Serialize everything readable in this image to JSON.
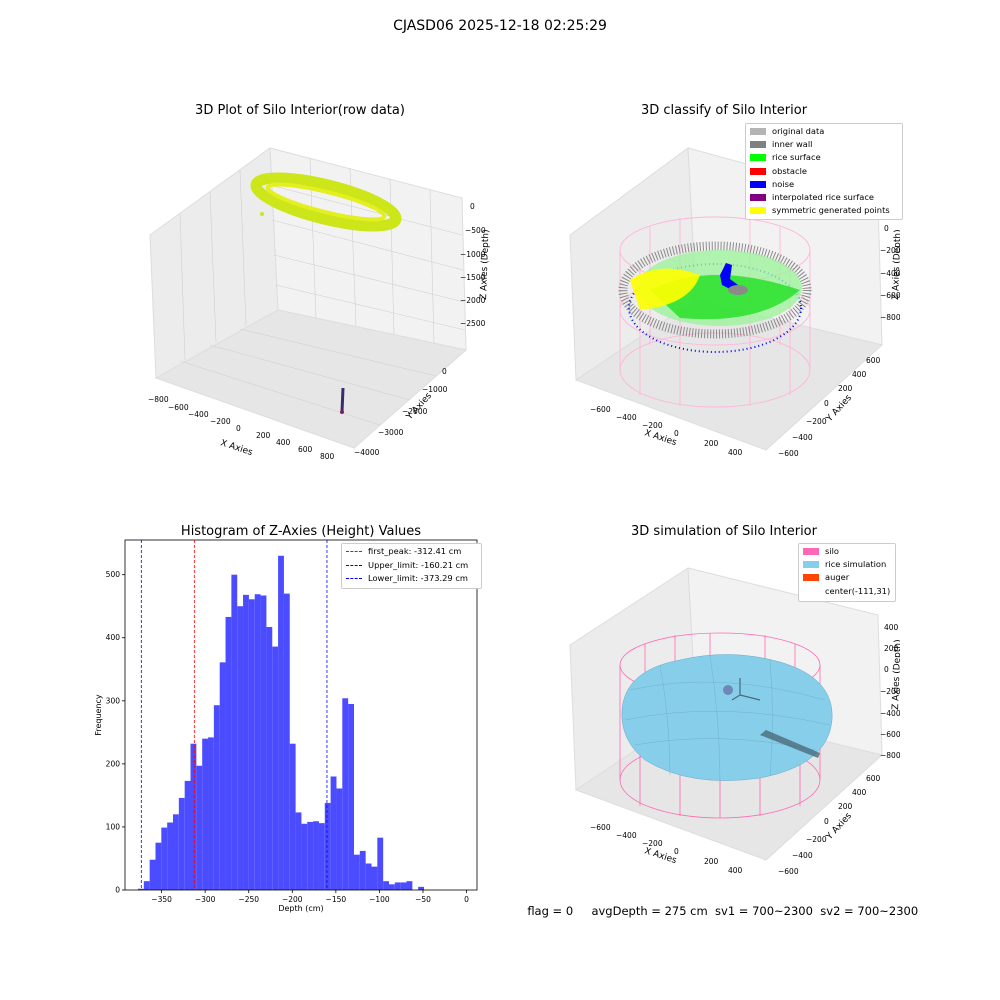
{
  "suptitle": "CJASD06 2025-12-18 02:25:29",
  "footer": {
    "flag": "flag = 0",
    "avg": "avgDepth = 275 cm",
    "sv1": "sv1 = 700~2300",
    "sv2": "sv2 = 700~2300"
  },
  "panel1": {
    "title": "3D Plot of Silo Interior(row data)",
    "xlabel": "X Axies",
    "ylabel": "Y Axies",
    "zlabel": "Z Axies (Depth)",
    "xticks": [
      "−800",
      "−600",
      "−400",
      "−200",
      "0",
      "200",
      "400",
      "600",
      "800"
    ],
    "yticks": [
      "−4000",
      "−3000",
      "−2000",
      "−1000",
      "0"
    ],
    "zticks": [
      "0",
      "−500",
      "−1000",
      "−1500",
      "−2000",
      "−2500"
    ],
    "colors": {
      "ring": "#cde61a",
      "stick": "#3a2b6e"
    }
  },
  "panel2": {
    "title": "3D classify of Silo Interior",
    "xlabel": "X Axies",
    "ylabel": "Y Axies",
    "zlabel": "Z Axies (Depth)",
    "xticks": [
      "−600",
      "−400",
      "−200",
      "0",
      "200",
      "400"
    ],
    "yticks": [
      "−600",
      "−400",
      "−200",
      "0",
      "200",
      "400",
      "600"
    ],
    "zticks": [
      "200",
      "0",
      "−200",
      "−400",
      "−600",
      "−800"
    ],
    "legend": [
      {
        "label": "original data",
        "color": "#b4b4b4"
      },
      {
        "label": "inner wall",
        "color": "#808080"
      },
      {
        "label": "rice surface",
        "color": "#00ff00"
      },
      {
        "label": "obstacle",
        "color": "#ff0000"
      },
      {
        "label": "noise",
        "color": "#0000ff"
      },
      {
        "label": "interpolated rice surface",
        "color": "#800080"
      },
      {
        "label": "symmetric generated points",
        "color": "#ffff00"
      }
    ]
  },
  "panel3": {
    "title": "3D simulation of Silo Interior",
    "xlabel": "X Axies",
    "ylabel": "Y Axies",
    "zlabel": "Z Axies (Depth)",
    "xticks": [
      "−600",
      "−400",
      "−200",
      "0",
      "200",
      "400"
    ],
    "yticks": [
      "−600",
      "−400",
      "−200",
      "0",
      "200",
      "400",
      "600"
    ],
    "zticks": [
      "400",
      "200",
      "0",
      "−200",
      "−400",
      "−600",
      "−800"
    ],
    "legend": [
      {
        "label": "silo",
        "color": "#ff69b4"
      },
      {
        "label": "rice simulation",
        "color": "#87ceeb"
      },
      {
        "label": "auger",
        "color": "#ff4500"
      },
      {
        "label": "center(-111,31)",
        "color": ""
      }
    ]
  },
  "chart_data": {
    "type": "bar",
    "title": "Histogram of Z-Axies (Height) Values",
    "xlabel": "Depth (cm)",
    "ylabel": "Frequency",
    "xlim": [
      -392,
      12
    ],
    "ylim": [
      0,
      555
    ],
    "xticks": [
      -350,
      -300,
      -250,
      -200,
      -150,
      -100,
      -50,
      0
    ],
    "yticks": [
      0,
      100,
      200,
      300,
      400,
      500
    ],
    "bin_width": 6.7,
    "bin_start": -377.1,
    "bar_color": "#4b4bff",
    "values": [
      2,
      14,
      48,
      75,
      99,
      107,
      120,
      146,
      173,
      232,
      197,
      240,
      242,
      293,
      361,
      433,
      500,
      450,
      468,
      461,
      469,
      467,
      417,
      386,
      530,
      470,
      232,
      123,
      105,
      108,
      109,
      106,
      138,
      180,
      161,
      304,
      295,
      56,
      62,
      42,
      37,
      83,
      14,
      9,
      12,
      12,
      14,
      0,
      5
    ],
    "lines": [
      {
        "label": "first_peak: -312.41 cm",
        "value": -312.41,
        "color": "#ff0000"
      },
      {
        "label": "Upper_limit: -160.21 cm",
        "value": -160.21,
        "color": "#0000ff"
      },
      {
        "label": "Lower_limit: -373.29 cm",
        "value": -373.29,
        "color": "#0000ff"
      }
    ]
  }
}
